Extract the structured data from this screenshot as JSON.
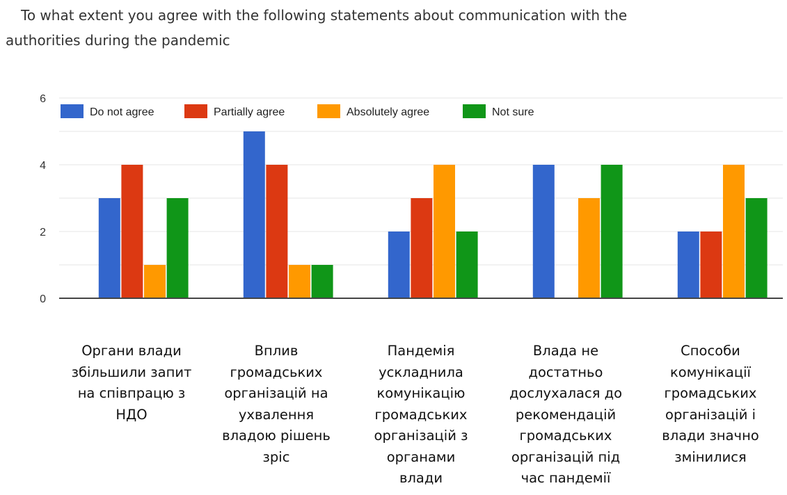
{
  "title": {
    "line1": "To what extent you agree with the following statements about communication with the",
    "line2": "authorities during the pandemic"
  },
  "chart_data": {
    "type": "bar",
    "categories": [
      "Органи влади збільшили запит на співпрацю з НДО",
      "Вплив громадських організацій на ухвалення владою рішень зріс",
      "Пандемія ускладнила комунікацію громадських організацій з органами влади",
      "Влада не достатньо дослухалася до рекомендацій громадських організацій під час пандемії",
      "Способи комунікації громадських організацій і влади значно змінилися"
    ],
    "series": [
      {
        "name": "Do not agree",
        "color": "#3366cc",
        "values": [
          3,
          5,
          2,
          4,
          2
        ]
      },
      {
        "name": "Partially agree",
        "color": "#dc3912",
        "values": [
          4,
          4,
          3,
          0,
          2
        ]
      },
      {
        "name": "Absolutely agree",
        "color": "#ff9900",
        "values": [
          1,
          1,
          4,
          3,
          4
        ]
      },
      {
        "name": "Not sure",
        "color": "#109618",
        "values": [
          3,
          1,
          2,
          4,
          3
        ]
      }
    ],
    "y_ticks": [
      "0",
      "2",
      "4",
      "6"
    ],
    "ylim": [
      0,
      6
    ],
    "legend_position": "top",
    "grid": true
  },
  "category_lines": [
    [
      "Органи влади",
      "збільшили запит",
      "на співпрацю з",
      "НДО"
    ],
    [
      "Вплив",
      "громадських",
      "організацій на",
      "ухвалення",
      "владою рішень",
      "зріс"
    ],
    [
      "Пандемія",
      "ускладнила",
      "комунікацію",
      "громадських",
      "організацій з",
      "органами",
      "влади"
    ],
    [
      "Влада не",
      "достатньо",
      "дослухалася до",
      "рекомендацій",
      "громадських",
      "організацій під",
      "час пандемії"
    ],
    [
      "Способи",
      "комунікації",
      "громадських",
      "організацій і",
      "влади значно",
      "змінилися"
    ]
  ]
}
